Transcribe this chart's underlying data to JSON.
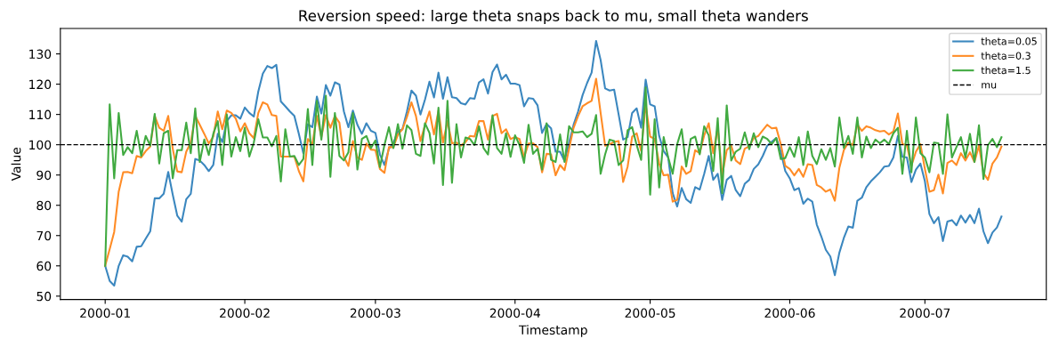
{
  "chart_data": {
    "type": "line",
    "title": "Reversion speed: large theta snaps back to mu, small theta wanders",
    "xlabel": "Timestamp",
    "ylabel": "Value",
    "x": [
      "2000-01-01",
      "2000-01-02",
      "2000-01-03",
      "2000-01-04",
      "2000-01-05",
      "2000-01-06",
      "2000-01-07",
      "2000-01-08",
      "2000-01-09",
      "2000-01-10",
      "2000-01-11",
      "2000-01-12",
      "2000-01-13",
      "2000-01-14",
      "2000-01-15",
      "2000-01-16",
      "2000-01-17",
      "2000-01-18",
      "2000-01-19",
      "2000-01-20",
      "2000-01-21",
      "2000-01-22",
      "2000-01-23",
      "2000-01-24",
      "2000-01-25",
      "2000-01-26",
      "2000-01-27",
      "2000-01-28",
      "2000-01-29",
      "2000-01-30",
      "2000-01-31",
      "2000-02-01",
      "2000-02-02",
      "2000-02-03",
      "2000-02-04",
      "2000-02-05",
      "2000-02-06",
      "2000-02-07",
      "2000-02-08",
      "2000-02-09",
      "2000-02-10",
      "2000-02-11",
      "2000-02-12",
      "2000-02-13",
      "2000-02-14",
      "2000-02-15",
      "2000-02-16",
      "2000-02-17",
      "2000-02-18",
      "2000-02-19",
      "2000-02-20",
      "2000-02-21",
      "2000-02-22",
      "2000-02-23",
      "2000-02-24",
      "2000-02-25",
      "2000-02-26",
      "2000-02-27",
      "2000-02-28",
      "2000-02-29",
      "2000-03-01",
      "2000-03-02",
      "2000-03-03",
      "2000-03-04",
      "2000-03-05",
      "2000-03-06",
      "2000-03-07",
      "2000-03-08",
      "2000-03-09",
      "2000-03-10",
      "2000-03-11",
      "2000-03-12",
      "2000-03-13",
      "2000-03-14",
      "2000-03-15",
      "2000-03-16",
      "2000-03-17",
      "2000-03-18",
      "2000-03-19",
      "2000-03-20",
      "2000-03-21",
      "2000-03-22",
      "2000-03-23",
      "2000-03-24",
      "2000-03-25",
      "2000-03-26",
      "2000-03-27",
      "2000-03-28",
      "2000-03-29",
      "2000-03-30",
      "2000-03-31",
      "2000-04-01",
      "2000-04-02",
      "2000-04-03",
      "2000-04-04",
      "2000-04-05",
      "2000-04-06",
      "2000-04-07",
      "2000-04-08",
      "2000-04-09",
      "2000-04-10",
      "2000-04-11",
      "2000-04-12",
      "2000-04-13",
      "2000-04-14",
      "2000-04-15",
      "2000-04-16",
      "2000-04-17",
      "2000-04-18",
      "2000-04-19",
      "2000-04-20",
      "2000-04-21",
      "2000-04-22",
      "2000-04-23",
      "2000-04-24",
      "2000-04-25",
      "2000-04-26",
      "2000-04-27",
      "2000-04-28",
      "2000-04-29",
      "2000-04-30",
      "2000-05-01",
      "2000-05-02",
      "2000-05-03",
      "2000-05-04",
      "2000-05-05",
      "2000-05-06",
      "2000-05-07",
      "2000-05-08",
      "2000-05-09",
      "2000-05-10",
      "2000-05-11",
      "2000-05-12",
      "2000-05-13",
      "2000-05-14",
      "2000-05-15",
      "2000-05-16",
      "2000-05-17",
      "2000-05-18",
      "2000-05-19",
      "2000-05-20",
      "2000-05-21",
      "2000-05-22",
      "2000-05-23",
      "2000-05-24",
      "2000-05-25",
      "2000-05-26",
      "2000-05-27",
      "2000-05-28",
      "2000-05-29",
      "2000-05-30",
      "2000-05-31",
      "2000-06-01",
      "2000-06-02",
      "2000-06-03",
      "2000-06-04",
      "2000-06-05",
      "2000-06-06",
      "2000-06-07",
      "2000-06-08",
      "2000-06-09",
      "2000-06-10",
      "2000-06-11",
      "2000-06-12",
      "2000-06-13",
      "2000-06-14",
      "2000-06-15",
      "2000-06-16",
      "2000-06-17",
      "2000-06-18",
      "2000-06-19",
      "2000-06-20",
      "2000-06-21",
      "2000-06-22",
      "2000-06-23",
      "2000-06-24",
      "2000-06-25",
      "2000-06-26",
      "2000-06-27",
      "2000-06-28",
      "2000-06-29",
      "2000-06-30",
      "2000-07-01",
      "2000-07-02",
      "2000-07-03",
      "2000-07-04",
      "2000-07-05",
      "2000-07-06",
      "2000-07-07",
      "2000-07-08",
      "2000-07-09",
      "2000-07-10",
      "2000-07-11",
      "2000-07-12",
      "2000-07-13",
      "2000-07-14",
      "2000-07-15",
      "2000-07-16",
      "2000-07-17",
      "2000-07-18"
    ],
    "series": [
      {
        "name": "theta=0.05",
        "color": "#3b87bf",
        "values": [
          60,
          55,
          53.5,
          60,
          63.5,
          63,
          61.5,
          66.3,
          66.5,
          69,
          71.4,
          82.3,
          82.3,
          83.8,
          91,
          83.5,
          76.6,
          74.6,
          82,
          83.8,
          95.3,
          94.8,
          93.3,
          91.3,
          93.3,
          103.6,
          100.9,
          107.8,
          109.7,
          109.7,
          108.6,
          112.3,
          110.5,
          109.3,
          117.6,
          123.5,
          126,
          125.3,
          126.4,
          114.3,
          112.7,
          111,
          109.5,
          103.6,
          97.2,
          106.8,
          105.8,
          115.9,
          110.3,
          119.7,
          116.2,
          120.6,
          119.9,
          111,
          105.8,
          111.3,
          106.6,
          103.6,
          107.1,
          104.6,
          103.9,
          96.8,
          93.3,
          98.7,
          100.7,
          104.4,
          105.1,
          111,
          117.9,
          116.2,
          110,
          114.9,
          120.8,
          115.6,
          123.8,
          115.2,
          122.3,
          115.7,
          115.4,
          113.7,
          113.3,
          115.4,
          115.2,
          120.6,
          121.6,
          116.9,
          124,
          126.5,
          121.6,
          123.1,
          120.2,
          120.2,
          119.7,
          112.7,
          115.4,
          115.2,
          113,
          103.9,
          106.9,
          105.4,
          97.7,
          97.7,
          94.6,
          100.7,
          106.6,
          111,
          116.4,
          120.4,
          123.8,
          134.3,
          128,
          118.6,
          117.9,
          118.2,
          110,
          101.7,
          102.5,
          110.5,
          112,
          105.6,
          121.5,
          113.3,
          112.7,
          102.9,
          97.9,
          95.8,
          84,
          79.6,
          85.7,
          82,
          80.8,
          86,
          85.2,
          90.4,
          96.3,
          88.4,
          90.4,
          81.8,
          88.4,
          89.7,
          85,
          83,
          87.1,
          88.4,
          92,
          93.5,
          96.3,
          99.7,
          101,
          102.2,
          97.7,
          91.3,
          88.9,
          85,
          85.7,
          80.5,
          82.2,
          81.2,
          73.6,
          69.7,
          65.3,
          63.1,
          56.9,
          64.3,
          69.2,
          73,
          72.6,
          81.5,
          82.5,
          86,
          87.9,
          89.4,
          90.9,
          92.8,
          93,
          95.8,
          102.9,
          96,
          95.8,
          87.7,
          91.8,
          93.8,
          87.9,
          77.1,
          74.1,
          76.1,
          68.2,
          74.6,
          75.1,
          73.4,
          76.6,
          74.3,
          76.8,
          74.1,
          78.9,
          71.4,
          67.5,
          71,
          72.7,
          76.3
        ]
      },
      {
        "name": "theta=0.3",
        "color": "#ff8c26",
        "values": [
          60,
          65.5,
          71.2,
          84.5,
          90.9,
          91,
          90.6,
          96.3,
          95.8,
          97.9,
          99.4,
          109.5,
          105.6,
          104.6,
          109.5,
          98.7,
          91.2,
          90.9,
          97.7,
          100.7,
          109.5,
          106.6,
          103.6,
          100.4,
          102.7,
          111,
          105.1,
          111.3,
          110.5,
          108.6,
          104.4,
          107.1,
          103.8,
          102.2,
          110.5,
          114,
          113.3,
          109.8,
          109.5,
          96.1,
          96.1,
          96.1,
          96.1,
          91.3,
          87.9,
          101.9,
          100.2,
          109.5,
          102.5,
          109.8,
          105.6,
          109.5,
          107.3,
          96,
          93,
          101.2,
          95.8,
          95,
          100.4,
          98.4,
          98.2,
          92,
          90.7,
          99.2,
          99.2,
          103.4,
          105.1,
          109.2,
          114,
          109.5,
          101.2,
          106.4,
          111,
          103.4,
          111.3,
          100.7,
          107.8,
          100.5,
          100.7,
          99.7,
          100.9,
          102.9,
          102.7,
          107.8,
          107.8,
          101.7,
          109.5,
          110.2,
          103.8,
          105.1,
          101.9,
          102.5,
          101.9,
          95.8,
          100.4,
          100.5,
          99.2,
          90.9,
          97,
          96.8,
          89.9,
          93.3,
          91.6,
          98.7,
          105.6,
          109.5,
          112.7,
          113.7,
          114.5,
          121.8,
          110.5,
          99.7,
          100.2,
          100.9,
          101.2,
          87.7,
          92.8,
          102.7,
          103.8,
          97.9,
          113.3,
          102.7,
          101.9,
          93.8,
          89.9,
          90.1,
          81.2,
          81.8,
          92.8,
          90.4,
          91.3,
          98.2,
          97.2,
          103.1,
          107.1,
          97.2,
          105.6,
          89.9,
          98.2,
          99.7,
          94.8,
          93.6,
          98.7,
          99.5,
          102.2,
          102.9,
          104.8,
          106.6,
          105.4,
          105.6,
          100.2,
          93,
          92,
          89.9,
          92,
          89.4,
          93.6,
          93.3,
          86.7,
          85.9,
          84.5,
          85.2,
          81.5,
          92.3,
          98.2,
          100.7,
          99.9,
          106.6,
          104.6,
          106.1,
          105.6,
          104.8,
          104.4,
          104.6,
          103.4,
          104.4,
          110.3,
          100.2,
          99.9,
          93,
          97.7,
          100.2,
          92,
          84.5,
          85,
          90.1,
          83.9,
          94,
          94.8,
          93.3,
          97.2,
          94.8,
          97.5,
          94.3,
          99.7,
          90.7,
          88.4,
          93.8,
          95.8,
          99.4
        ]
      },
      {
        "name": "theta=1.5",
        "color": "#41aa41",
        "values": [
          60,
          113.3,
          88.9,
          110.5,
          96.6,
          99.2,
          97.2,
          104.6,
          96.3,
          102.9,
          99.7,
          110.2,
          93.8,
          103.8,
          104.6,
          88.9,
          98.2,
          98.2,
          107.3,
          97.2,
          112,
          94.3,
          101.7,
          96.6,
          103.6,
          107.8,
          93.3,
          110,
          96.1,
          102.5,
          97.9,
          105.6,
          96.1,
          100.7,
          108.4,
          102.4,
          102.4,
          99.5,
          102.9,
          87.9,
          105.1,
          96.1,
          96.3,
          93.3,
          95.3,
          111.8,
          93.3,
          114.5,
          101.7,
          116.2,
          89.4,
          110.5,
          96.3,
          94.8,
          97.5,
          110.5,
          91.8,
          101.9,
          102.9,
          98.9,
          101.4,
          92.6,
          99.9,
          105.8,
          98.9,
          106.8,
          98.7,
          106.4,
          104.8,
          97,
          96.3,
          107.1,
          103.9,
          93.8,
          112.2,
          86.7,
          114.5,
          87.4,
          106.8,
          95.8,
          102.4,
          101.9,
          99.9,
          106.1,
          98.9,
          96.8,
          109.7,
          98.9,
          97,
          103.8,
          96,
          103.1,
          99.9,
          94,
          106.6,
          97,
          98.7,
          91.8,
          107.1,
          95,
          94.3,
          103.4,
          94.3,
          106.1,
          104.1,
          104.1,
          104.4,
          102.5,
          103.6,
          109.8,
          90.4,
          96.8,
          101.7,
          101.2,
          93.3,
          94.8,
          104.8,
          105.8,
          99.9,
          95,
          118.9,
          83.5,
          108.4,
          85.9,
          102.5,
          95.8,
          90.4,
          100.2,
          105.1,
          92.8,
          101.9,
          102.7,
          96.8,
          106.1,
          103.1,
          91.3,
          108.8,
          84,
          113,
          94.8,
          97.7,
          98.7,
          104.1,
          98.5,
          103.8,
          99.2,
          102.7,
          101.9,
          100.2,
          102.2,
          95.3,
          95.6,
          99.2,
          96,
          102.5,
          93.3,
          104.4,
          96.3,
          93.6,
          98.5,
          95,
          98.9,
          92.8,
          109,
          98.9,
          102.9,
          97,
          109,
          95.8,
          102.7,
          98.9,
          101.7,
          100.5,
          101.7,
          100.2,
          103.8,
          105.6,
          90.4,
          104.6,
          90.9,
          109,
          97.2,
          95.8,
          90.9,
          100.7,
          100.5,
          90.4,
          110,
          95.8,
          99.2,
          102.5,
          95.8,
          103.6,
          94.3,
          106.4,
          88.7,
          99.9,
          101.9,
          99.2,
          102.5
        ]
      }
    ],
    "ref_lines": [
      {
        "axis": "y",
        "value": 100,
        "label": "mu",
        "color": "#000000",
        "line_style": "dashed"
      }
    ],
    "xlim": [
      "1999-12-22T01:12",
      "2000-07-27T22:48"
    ],
    "xticks": [
      {
        "value": "2000-01-01",
        "label": "2000-01"
      },
      {
        "value": "2000-02-01",
        "label": "2000-02"
      },
      {
        "value": "2000-03-01",
        "label": "2000-03"
      },
      {
        "value": "2000-04-01",
        "label": "2000-04"
      },
      {
        "value": "2000-05-01",
        "label": "2000-05"
      },
      {
        "value": "2000-06-01",
        "label": "2000-06"
      },
      {
        "value": "2000-07-01",
        "label": "2000-07"
      }
    ],
    "ylim": [
      48.9,
      138.4
    ],
    "yticks": [
      50,
      60,
      70,
      80,
      90,
      100,
      110,
      120,
      130
    ],
    "grid": false,
    "legend": "top right",
    "marker": "none",
    "line_style": "solid"
  }
}
